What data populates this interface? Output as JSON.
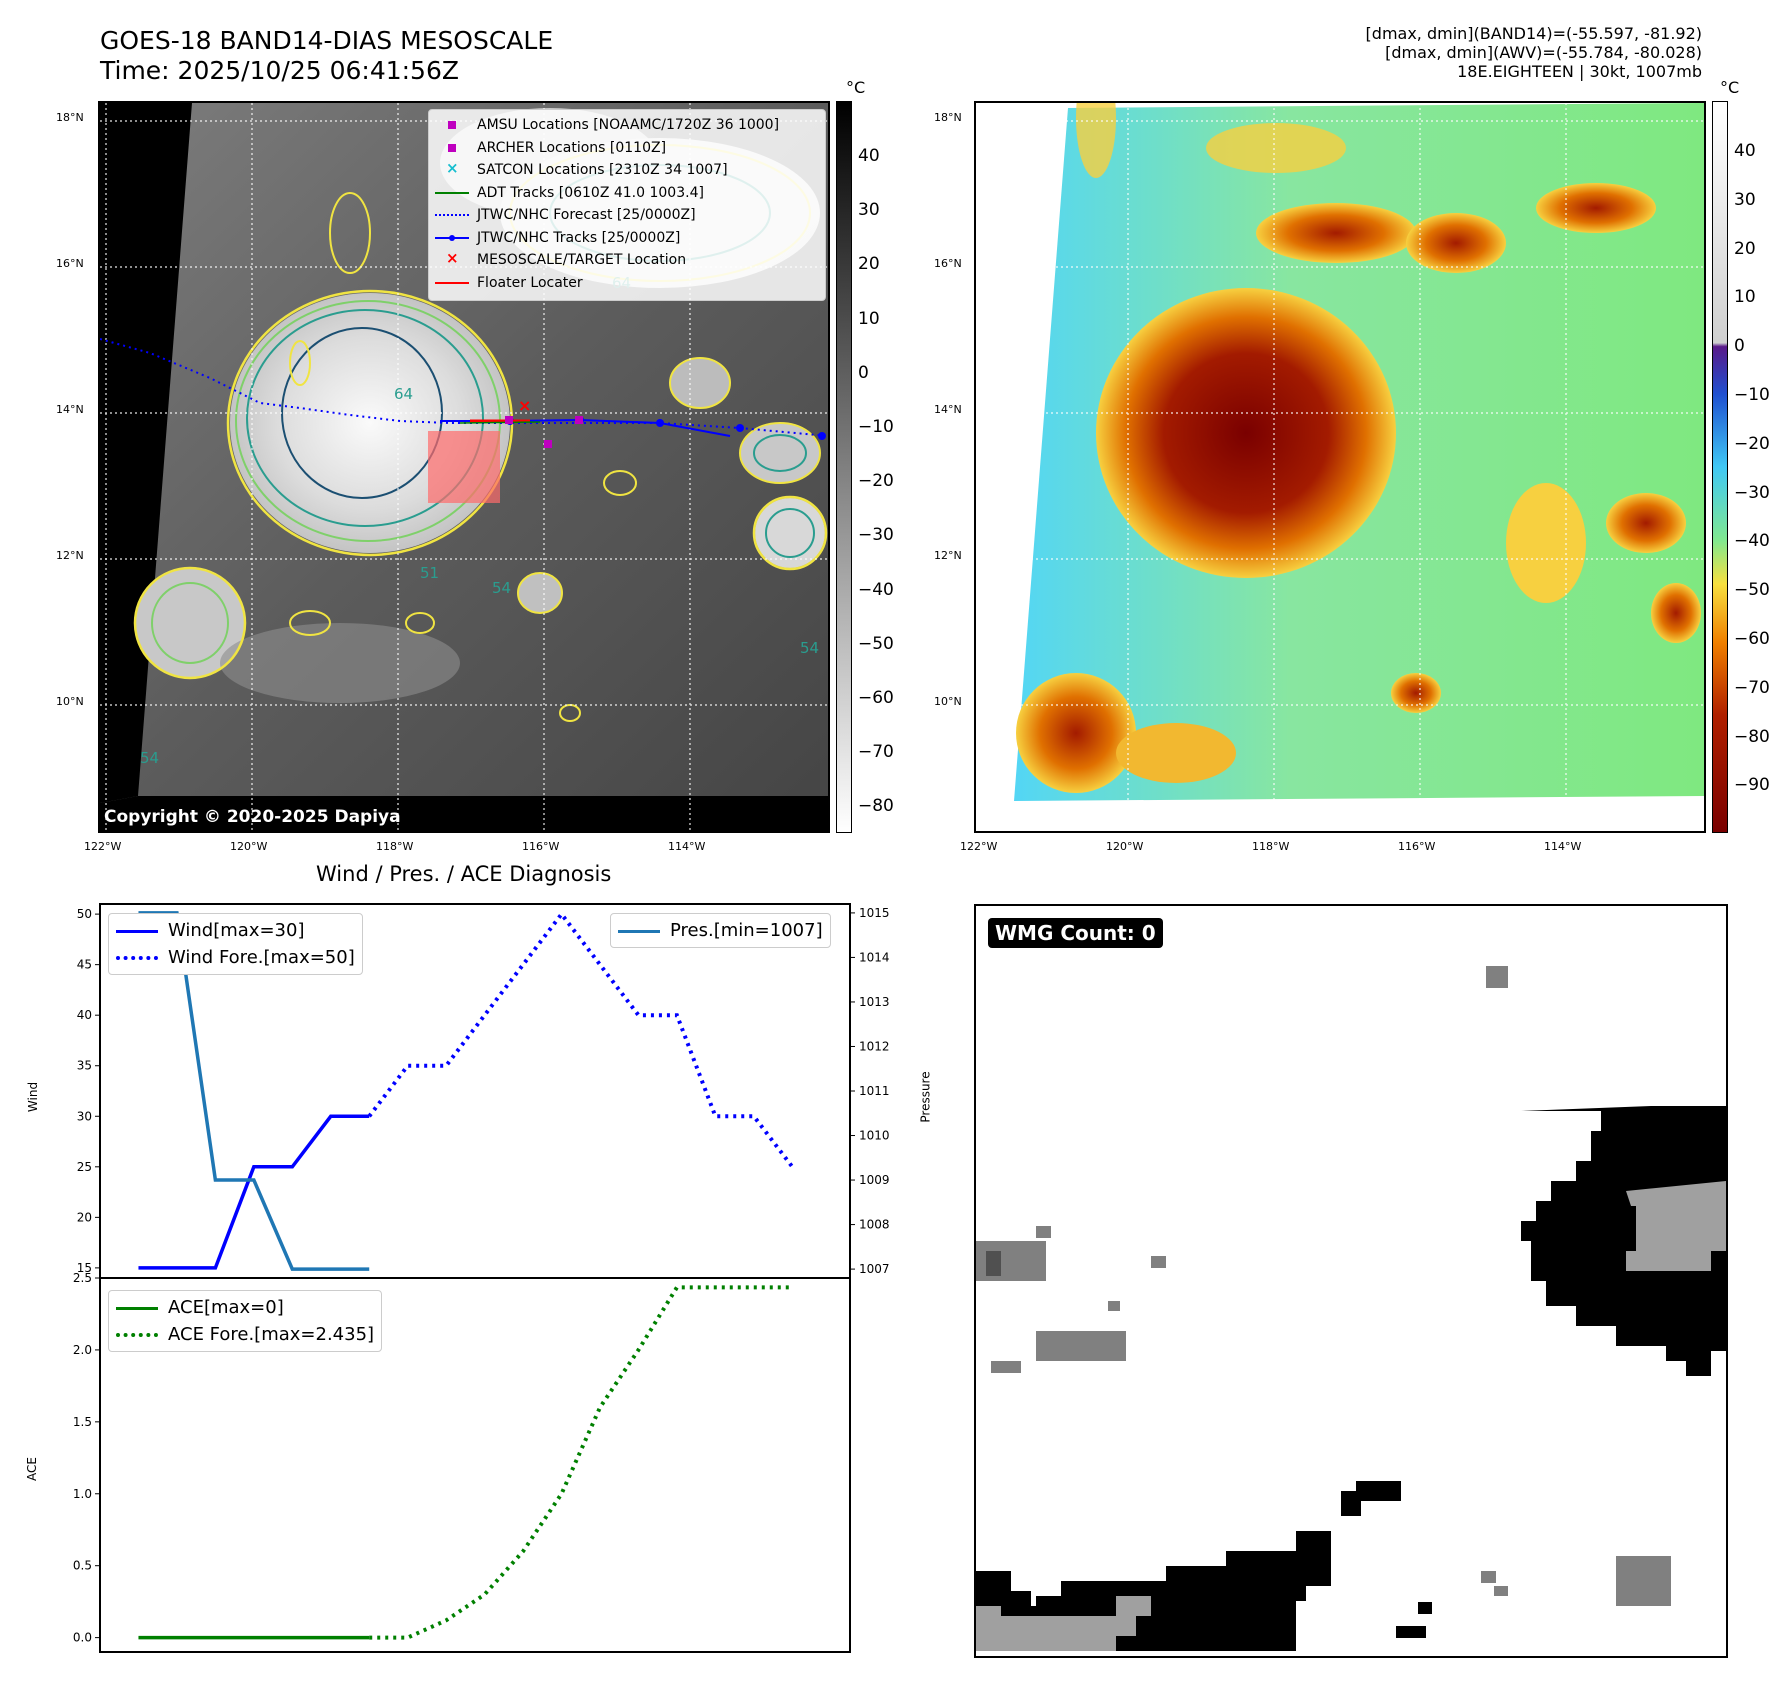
{
  "header": {
    "title_line1": "GOES-18 BAND14-DIAS MESOSCALE",
    "title_line2": "Time: 2025/10/25 06:41:56Z",
    "info_line1": "[dmax, dmin](BAND14)=(-55.597, -81.92)",
    "info_line2": "[dmax, dmin](AWV)=(-55.784, -80.028)",
    "info_line3": "18E.EIGHTEEN | 30kt, 1007mb"
  },
  "ir_panel": {
    "lat_labels": [
      "18°N",
      "16°N",
      "14°N",
      "12°N",
      "10°N"
    ],
    "lon_labels": [
      "122°W",
      "120°W",
      "118°W",
      "116°W",
      "114°W"
    ],
    "copyright": "Copyright © 2020-2025 Dapiya",
    "contour_labels": [
      "64",
      "64",
      "54",
      "54",
      "51",
      "54"
    ],
    "colorbar_unit": "°C",
    "colorbar_ticks": [
      "40",
      "30",
      "20",
      "10",
      "0",
      "−10",
      "−20",
      "−30",
      "−40",
      "−50",
      "−60",
      "−70",
      "−80"
    ],
    "legend": [
      {
        "label": "AMSU Locations [NOAAMC/1720Z 36 1000]",
        "color": "#bf00bf",
        "kind": "square"
      },
      {
        "label": "ARCHER Locations [0110Z]",
        "color": "#bf00bf",
        "kind": "square"
      },
      {
        "label": "SATCON Locations [2310Z 34 1007]",
        "color": "#17becf",
        "kind": "x"
      },
      {
        "label": "ADT Tracks [0610Z 41.0 1003.4]",
        "color": "#008000",
        "kind": "line"
      },
      {
        "label": "JTWC/NHC Forecast [25/0000Z]",
        "color": "#0000ff",
        "kind": "dotted"
      },
      {
        "label": "JTWC/NHC Tracks [25/0000Z]",
        "color": "#0000ff",
        "kind": "line-dot"
      },
      {
        "label": "MESOSCALE/TARGET Location",
        "color": "#ff0000",
        "kind": "x"
      },
      {
        "label": "Floater Locater",
        "color": "#ff0000",
        "kind": "line"
      }
    ]
  },
  "awv_panel": {
    "lat_labels": [
      "18°N",
      "16°N",
      "14°N",
      "12°N",
      "10°N"
    ],
    "lon_labels": [
      "122°W",
      "120°W",
      "118°W",
      "116°W",
      "114°W"
    ],
    "colorbar_unit": "°C",
    "colorbar_ticks": [
      "40",
      "30",
      "20",
      "10",
      "0",
      "−10",
      "−20",
      "−30",
      "−40",
      "−50",
      "−60",
      "−70",
      "−80",
      "−90"
    ]
  },
  "wmg_panel": {
    "badge": "WMG Count: 0"
  },
  "diagnosis": {
    "title": "Wind / Pres. / ACE Diagnosis",
    "wind_ylabel": "Wind",
    "pres_ylabel": "Pressure",
    "ace_ylabel": "ACE",
    "legend_wind": "Wind[max=30]",
    "legend_wind_fore": "Wind Fore.[max=50]",
    "legend_pres": "Pres.[min=1007]",
    "legend_ace": "ACE[max=0]",
    "legend_ace_fore": "ACE Fore.[max=2.435]",
    "colors": {
      "wind": "#0000ff",
      "pres": "#1f77b4",
      "ace": "#008000"
    }
  },
  "chart_data": [
    {
      "type": "line",
      "title": "Wind / Pres. / ACE Diagnosis",
      "ylabel": "Wind",
      "ylim": [
        14,
        51
      ],
      "yticks": [
        15,
        20,
        25,
        30,
        35,
        40,
        45,
        50
      ],
      "series": [
        {
          "name": "Wind[max=30]",
          "style": "solid",
          "x": [
            0,
            1,
            2,
            3,
            4,
            5,
            6
          ],
          "values": [
            15,
            15,
            15,
            25,
            25,
            30,
            30
          ]
        },
        {
          "name": "Wind Fore.[max=50]",
          "style": "dotted",
          "x": [
            6,
            7,
            8,
            9,
            10,
            11,
            12,
            13,
            14,
            15,
            16,
            17
          ],
          "values": [
            30,
            35,
            35,
            40,
            45,
            50,
            45,
            40,
            40,
            30,
            30,
            25
          ]
        }
      ]
    },
    {
      "type": "line",
      "ylabel": "Pressure",
      "ylim": [
        1006.8,
        1015.2
      ],
      "yticks": [
        1007,
        1008,
        1009,
        1010,
        1011,
        1012,
        1013,
        1014,
        1015
      ],
      "series": [
        {
          "name": "Pres.[min=1007]",
          "style": "solid",
          "x": [
            0,
            1,
            2,
            3,
            4,
            5,
            6
          ],
          "values": [
            1015,
            1015,
            1009,
            1009,
            1007,
            1007,
            1007
          ]
        }
      ]
    },
    {
      "type": "line",
      "ylabel": "ACE",
      "ylim": [
        -0.1,
        2.5
      ],
      "yticks": [
        0.0,
        0.5,
        1.0,
        1.5,
        2.0,
        2.5
      ],
      "series": [
        {
          "name": "ACE[max=0]",
          "style": "solid",
          "x": [
            0,
            1,
            2,
            3,
            4,
            5,
            6
          ],
          "values": [
            0,
            0,
            0,
            0,
            0,
            0,
            0
          ]
        },
        {
          "name": "ACE Fore.[max=2.435]",
          "style": "dotted",
          "x": [
            6,
            7,
            8,
            9,
            10,
            11,
            12,
            13,
            14,
            15,
            16,
            17
          ],
          "values": [
            0,
            0,
            0.12,
            0.3,
            0.6,
            1.0,
            1.6,
            2.0,
            2.435,
            2.435,
            2.435,
            2.435
          ]
        }
      ]
    }
  ]
}
